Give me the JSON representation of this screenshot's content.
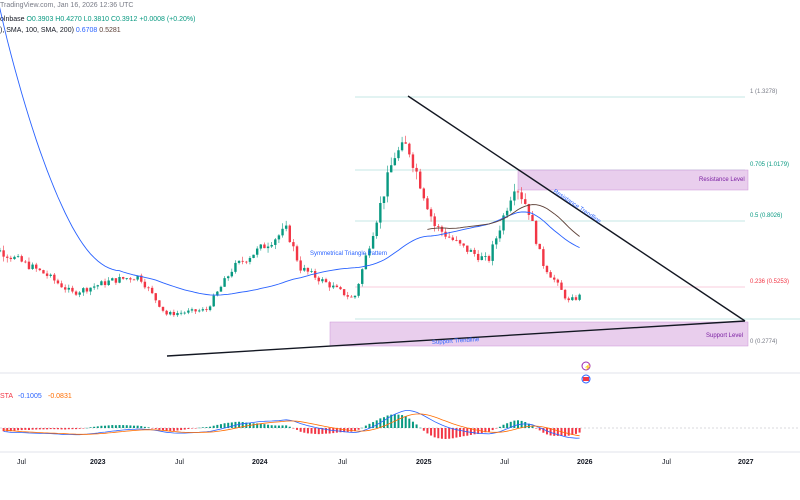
{
  "header": {
    "source": "TradingView.com, Jan 16, 2026 12:36 UTC",
    "symbol_fragment": "olnbase",
    "ohlc": {
      "open": "O0.3903",
      "high": "H0.4270",
      "low": "L0.3810",
      "close": "C0.3912",
      "change": "+0.0008 (+0.20%)"
    },
    "ma_legend": {
      "label": "), SMA, 100, SMA, 200)",
      "ma100": "0.6708",
      "ma200": "0.5281"
    },
    "macd_legend": {
      "label": "STA",
      "macd": "-0.1005",
      "signal": "-0.0831"
    }
  },
  "colors": {
    "up": "#089981",
    "down": "#f23645",
    "ma100": "#2962ff",
    "ma200": "#5d4037",
    "zone": "#e1bee7",
    "macd_line": "#2962ff",
    "signal_line": "#ff6d00"
  },
  "chart_data": {
    "type": "candlestick",
    "x_axis_labels": [
      "Jul",
      "2023",
      "Jul",
      "2024",
      "Jul",
      "2025",
      "Jul",
      "2026",
      "Jul",
      "2027"
    ],
    "fib_levels": [
      {
        "label": "1 (1.3278)",
        "value": 1.3278
      },
      {
        "label": "0.705 (1.0179)",
        "value": 1.0179
      },
      {
        "label": "0.5 (0.8026)",
        "value": 0.8026
      },
      {
        "label": "0.236 (0.5253)",
        "value": 0.5253
      },
      {
        "label": "0 (0.2774)",
        "value": 0.2774
      }
    ],
    "annotations": {
      "resistance_level": "Resistance Level",
      "support_level": "Support Level",
      "resistance_trendline": "Resistance Trendline",
      "support_trendline": "Support Trendline",
      "pattern": "Symmetrical Triangle Pattern"
    },
    "price_path_key_points": [
      {
        "date": "2022-05",
        "close": 0.62
      },
      {
        "date": "2022-09",
        "close": 0.49
      },
      {
        "date": "2022-11",
        "close": 0.4
      },
      {
        "date": "2023-02",
        "close": 0.46
      },
      {
        "date": "2023-04",
        "close": 0.48
      },
      {
        "date": "2023-06",
        "close": 0.3
      },
      {
        "date": "2023-09",
        "close": 0.32
      },
      {
        "date": "2023-11",
        "close": 0.52
      },
      {
        "date": "2024-03",
        "close": 0.7
      },
      {
        "date": "2024-04",
        "close": 0.52
      },
      {
        "date": "2024-08",
        "close": 0.37
      },
      {
        "date": "2024-11",
        "close": 1.05
      },
      {
        "date": "2024-12",
        "close": 1.1
      },
      {
        "date": "2025-02",
        "close": 0.72
      },
      {
        "date": "2025-04",
        "close": 0.62
      },
      {
        "date": "2025-06",
        "close": 0.55
      },
      {
        "date": "2025-08",
        "close": 0.92
      },
      {
        "date": "2025-09",
        "close": 0.8
      },
      {
        "date": "2025-10",
        "close": 0.55
      },
      {
        "date": "2025-12",
        "close": 0.36
      },
      {
        "date": "2026-01",
        "close": 0.39
      }
    ]
  }
}
